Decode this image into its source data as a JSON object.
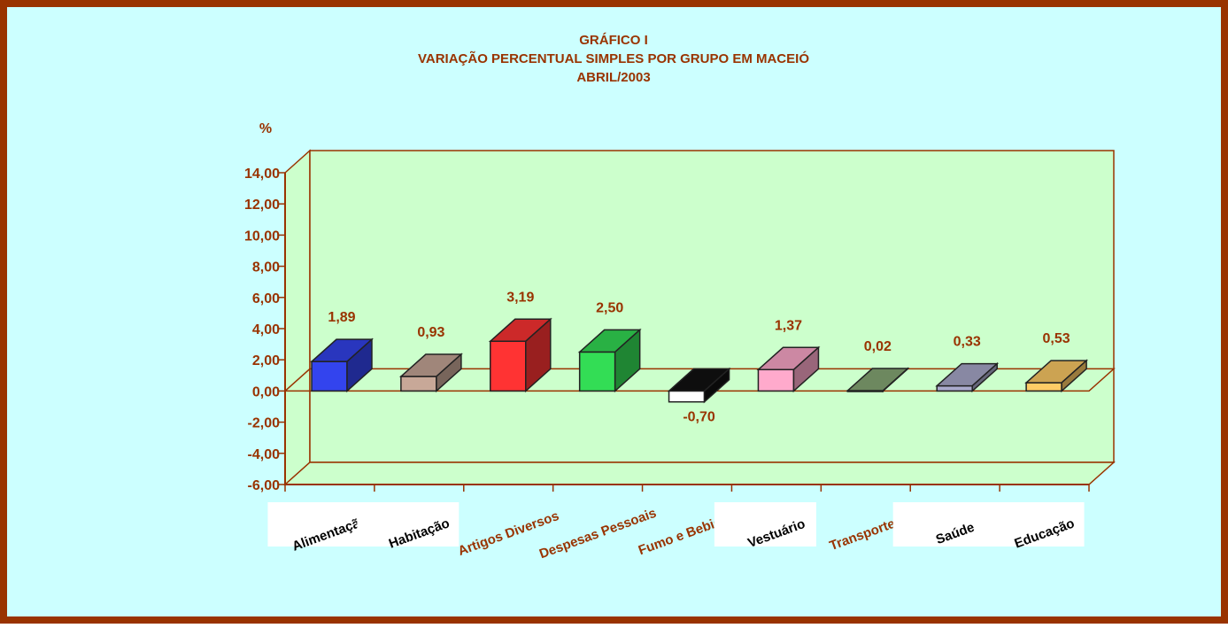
{
  "chart_data": {
    "type": "bar3d",
    "title": [
      "GRÁFICO I",
      "VARIAÇÃO PERCENTUAL SIMPLES POR GRUPO EM MACEIÓ",
      "ABRIL/2003"
    ],
    "y_label": "%",
    "categories": [
      "Alimentação",
      "Habitação",
      "Artigos Diversos",
      "Despesas Pessoais",
      "Fumo e Bebidas",
      "Vestuário",
      "Transportes",
      "Saúde",
      "Educação"
    ],
    "values": [
      1.89,
      0.93,
      3.19,
      2.5,
      -0.7,
      1.37,
      0.02,
      0.33,
      0.53
    ],
    "value_labels": [
      "1,89",
      "0,93",
      "3,19",
      "2,50",
      "-0,70",
      "1,37",
      "0,02",
      "0,33",
      "0,53"
    ],
    "colors": [
      "#3344ee",
      "#c8a898",
      "#ff3333",
      "#33dd55",
      "#111111",
      "#ffaacc",
      "#88aa77",
      "#aaaacc",
      "#ffcc66"
    ],
    "ylim": [
      -6,
      14
    ],
    "yticks": [
      {
        "value": -6,
        "label": "-6,00"
      },
      {
        "value": -4,
        "label": "-4,00"
      },
      {
        "value": -2,
        "label": "-2,00"
      },
      {
        "value": 0,
        "label": "0,00"
      },
      {
        "value": 2,
        "label": "2,00"
      },
      {
        "value": 4,
        "label": "4,00"
      },
      {
        "value": 6,
        "label": "6,00"
      },
      {
        "value": 8,
        "label": "8,00"
      },
      {
        "value": 10,
        "label": "10,00"
      },
      {
        "value": 12,
        "label": "12,00"
      },
      {
        "value": 14,
        "label": "14,00"
      }
    ]
  }
}
